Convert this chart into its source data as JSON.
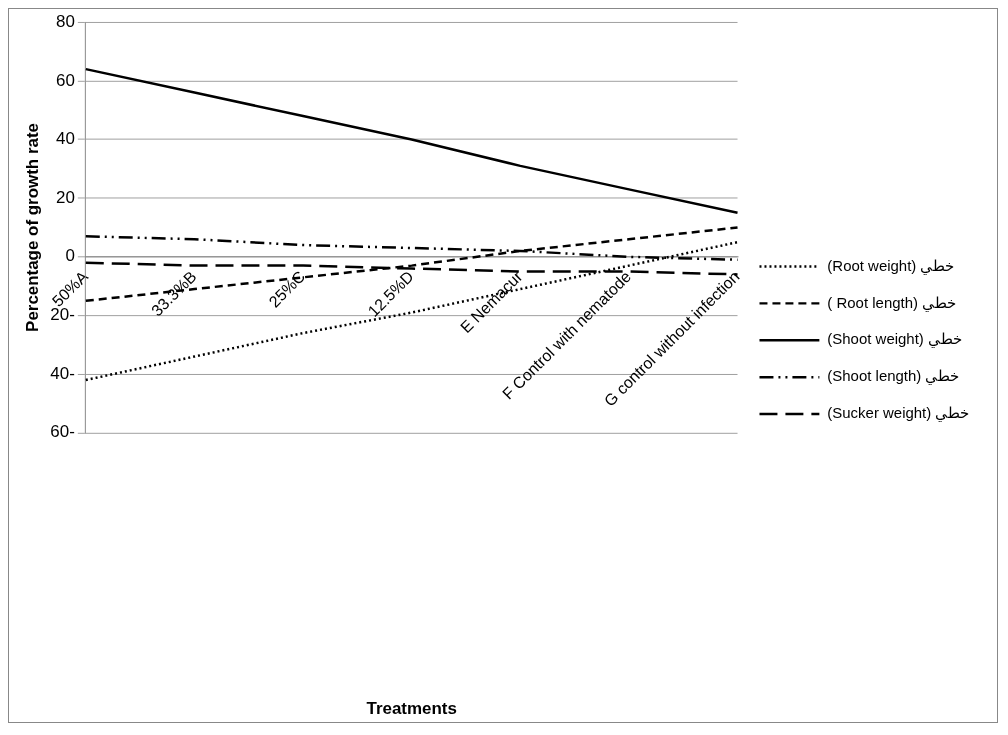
{
  "chart_data": {
    "type": "line",
    "annotations": [
      "Treatments"
    ],
    "ylabel": "Percentage of growth rate",
    "categories": [
      "50%A",
      "33.3%B",
      "25%C",
      "12.5%D",
      "E Nemacur",
      "F Control with nematode",
      "G control without infection"
    ],
    "series": [
      {
        "name": "(Root weight) خطي",
        "color": "#000000",
        "line_style": "dotted",
        "values": [
          -42,
          -34,
          -26,
          -19,
          -11,
          -3,
          5
        ]
      },
      {
        "name": "( Root length) خطي",
        "color": "#000000",
        "line_style": "dashed",
        "values": [
          -15,
          -11,
          -7,
          -3,
          2,
          6,
          10
        ]
      },
      {
        "name": "(Shoot weight) خطي",
        "color": "#000000",
        "line_style": "solid",
        "values": [
          64,
          56,
          48,
          40,
          31,
          23,
          15
        ]
      },
      {
        "name": "(Shoot length) خطي",
        "color": "#000000",
        "line_style": "dashdot",
        "values": [
          7,
          6,
          4,
          3,
          2,
          0,
          -1
        ]
      },
      {
        "name": "(Sucker weight) خطي",
        "color": "#000000",
        "line_style": "longdash",
        "values": [
          -2,
          -3,
          -3,
          -4,
          -5,
          -5,
          -6
        ]
      }
    ],
    "ylim": [
      -60,
      80
    ],
    "yticks": [
      {
        "value": -60,
        "label": "60-"
      },
      {
        "value": -40,
        "label": "40-"
      },
      {
        "value": -20,
        "label": "20-"
      },
      0,
      20,
      40,
      60,
      80
    ],
    "grid": "y",
    "legend": "right",
    "marker": "none"
  }
}
